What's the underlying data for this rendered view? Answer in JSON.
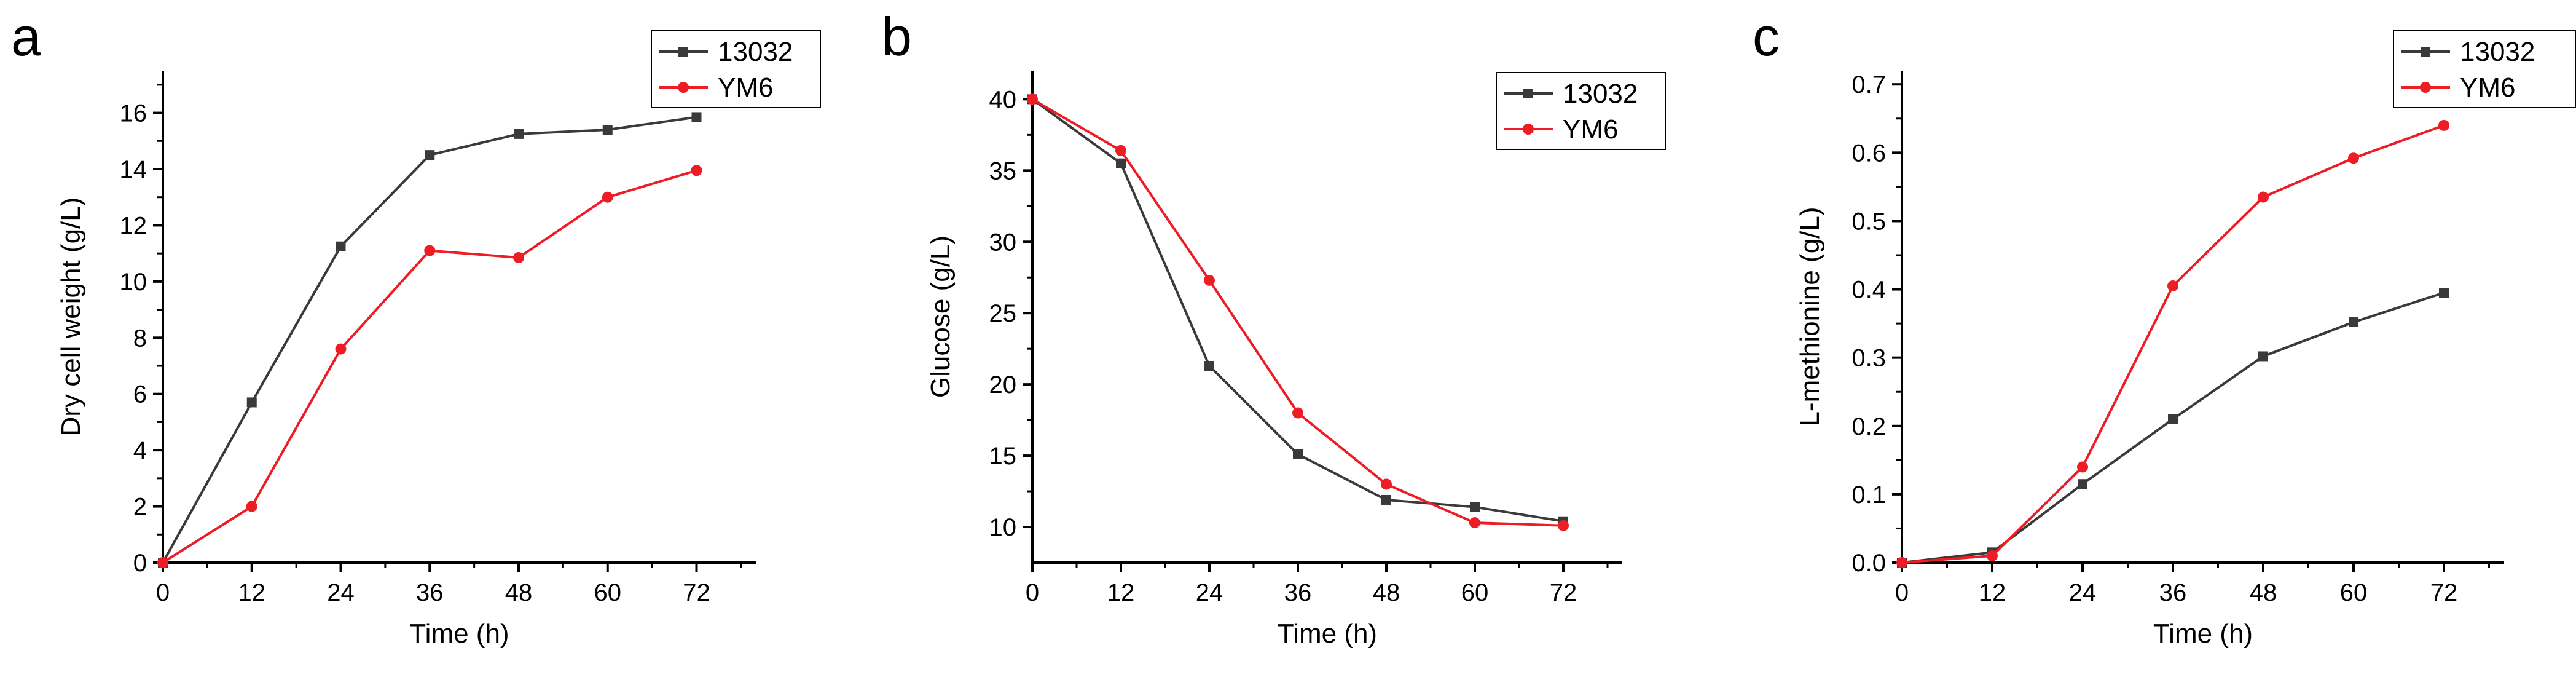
{
  "colors": {
    "s13032": "#3a3a3a",
    "sYM6": "#ee1c25"
  },
  "chart_data": [
    {
      "type": "line",
      "panel": "a",
      "xlabel": "Time (h)",
      "ylabel": "Dry cell weight (g/L)",
      "x": [
        0,
        12,
        24,
        36,
        48,
        60,
        72
      ],
      "xlim": [
        0,
        80
      ],
      "ylim": [
        0,
        17.5
      ],
      "xticks": [
        0,
        12,
        24,
        36,
        48,
        60,
        72
      ],
      "yticks": [
        0,
        2,
        4,
        6,
        8,
        10,
        12,
        14,
        16
      ],
      "ytick_labels": [
        "0",
        "2",
        "4",
        "6",
        "8",
        "10",
        "12",
        "14",
        "16"
      ],
      "legend_position": "top-right",
      "series": [
        {
          "name": "13032",
          "marker": "square",
          "values": [
            0,
            5.7,
            11.25,
            14.5,
            15.25,
            15.4,
            15.85
          ]
        },
        {
          "name": "YM6",
          "marker": "circle",
          "values": [
            0,
            2.0,
            7.6,
            11.1,
            10.85,
            13.0,
            13.95
          ]
        }
      ]
    },
    {
      "type": "line",
      "panel": "b",
      "xlabel": "Time (h)",
      "ylabel": "Glucose (g/L)",
      "x": [
        0,
        12,
        24,
        36,
        48,
        60,
        72
      ],
      "xlim": [
        0,
        80
      ],
      "ylim": [
        7.5,
        42
      ],
      "xticks": [
        0,
        12,
        24,
        36,
        48,
        60,
        72
      ],
      "yticks": [
        10,
        15,
        20,
        25,
        30,
        35,
        40
      ],
      "ytick_labels": [
        "10",
        "15",
        "20",
        "25",
        "30",
        "35",
        "40"
      ],
      "legend_position": "top-right",
      "series": [
        {
          "name": "13032",
          "marker": "square",
          "values": [
            40,
            35.5,
            21.3,
            15.1,
            11.9,
            11.4,
            10.4
          ]
        },
        {
          "name": "YM6",
          "marker": "circle",
          "values": [
            40,
            36.4,
            27.3,
            18.0,
            13.0,
            10.3,
            10.1
          ]
        }
      ]
    },
    {
      "type": "line",
      "panel": "c",
      "xlabel": "Time (h)",
      "ylabel": "L-methionine (g/L)",
      "x": [
        0,
        12,
        24,
        36,
        48,
        60,
        72
      ],
      "xlim": [
        0,
        80
      ],
      "ylim": [
        0,
        0.72
      ],
      "xticks": [
        0,
        12,
        24,
        36,
        48,
        60,
        72
      ],
      "yticks": [
        0.0,
        0.1,
        0.2,
        0.3,
        0.4,
        0.5,
        0.6,
        0.7
      ],
      "ytick_labels": [
        "0.0",
        "0.1",
        "0.2",
        "0.3",
        "0.4",
        "0.5",
        "0.6",
        "0.7"
      ],
      "legend_position": "top-right",
      "series": [
        {
          "name": "13032",
          "marker": "square",
          "values": [
            0,
            0.015,
            0.115,
            0.21,
            0.302,
            0.352,
            0.395
          ]
        },
        {
          "name": "YM6",
          "marker": "circle",
          "values": [
            0,
            0.01,
            0.14,
            0.405,
            0.535,
            0.592,
            0.64
          ]
        }
      ]
    }
  ]
}
